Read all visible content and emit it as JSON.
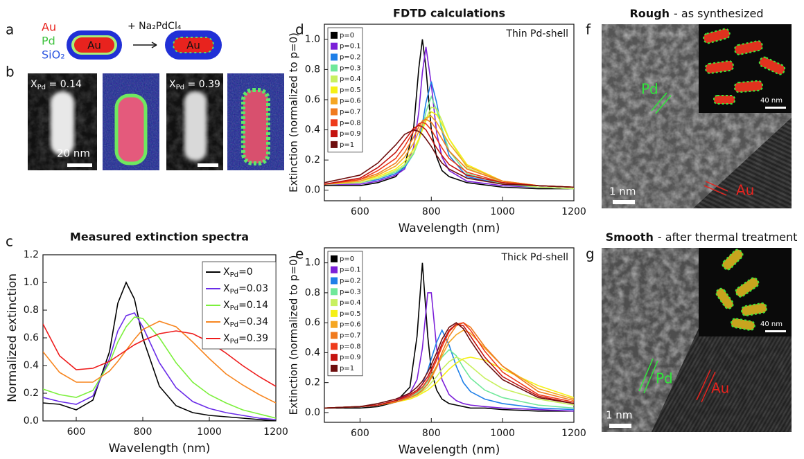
{
  "panel_labels": [
    "a",
    "b",
    "c",
    "d",
    "e",
    "f",
    "g"
  ],
  "panel_a": {
    "au": "Au",
    "pd": "Pd",
    "sio2": "SiO₂",
    "reagent": "+ Na₂PdCl₄",
    "core_left": "Au",
    "core_right": "Au"
  },
  "panel_b": {
    "label_left": "XPd = 0.14",
    "scale_left": "20 nm",
    "label_right": "XPd = 0.39"
  },
  "panel_f": {
    "title_bold": "Rough",
    "title_rest": "- as synthesized",
    "pd": "Pd",
    "au": "Au",
    "scale": "1 nm",
    "inset_scale": "40 nm"
  },
  "panel_g": {
    "title_bold": "Smooth",
    "title_rest": "- after thermal treatment",
    "pd": "Pd",
    "au": "Au",
    "scale": "1 nm",
    "inset_scale": "40 nm"
  },
  "chart_data": [
    {
      "type": "line",
      "title": "Measured extinction spectra",
      "xlabel": "Wavelength (nm)",
      "ylabel": "Normalized extinction",
      "x": [
        500,
        550,
        600,
        650,
        700,
        725,
        750,
        775,
        800,
        850,
        900,
        950,
        1000,
        1050,
        1100,
        1150,
        1200
      ],
      "series": [
        {
          "name": "XPd=0",
          "color": "#000000",
          "values": [
            0.13,
            0.12,
            0.08,
            0.15,
            0.5,
            0.85,
            1.0,
            0.88,
            0.6,
            0.25,
            0.11,
            0.06,
            0.04,
            0.03,
            0.02,
            0.01,
            0.0
          ]
        },
        {
          "name": "XPd=0.03",
          "color": "#6a2ce8",
          "values": [
            0.17,
            0.14,
            0.12,
            0.18,
            0.45,
            0.65,
            0.76,
            0.78,
            0.68,
            0.42,
            0.24,
            0.14,
            0.09,
            0.06,
            0.04,
            0.02,
            0.01
          ]
        },
        {
          "name": "XPd=0.14",
          "color": "#7cf03c",
          "values": [
            0.23,
            0.19,
            0.17,
            0.22,
            0.42,
            0.57,
            0.68,
            0.75,
            0.74,
            0.6,
            0.42,
            0.28,
            0.19,
            0.13,
            0.08,
            0.05,
            0.02
          ]
        },
        {
          "name": "XPd=0.34",
          "color": "#f7851f",
          "values": [
            0.5,
            0.35,
            0.28,
            0.28,
            0.36,
            0.43,
            0.51,
            0.59,
            0.66,
            0.72,
            0.68,
            0.57,
            0.45,
            0.34,
            0.26,
            0.19,
            0.13
          ]
        },
        {
          "name": "XPd=0.39",
          "color": "#ee1c1c",
          "values": [
            0.7,
            0.47,
            0.37,
            0.38,
            0.43,
            0.47,
            0.51,
            0.55,
            0.58,
            0.63,
            0.65,
            0.63,
            0.57,
            0.49,
            0.4,
            0.32,
            0.25
          ]
        }
      ],
      "xlim": [
        500,
        1200
      ],
      "ylim": [
        0,
        1.2
      ],
      "xticks": [
        600,
        800,
        1000,
        1200
      ],
      "yticks": [
        {
          "value": 0,
          "label": "0.0"
        },
        0.2,
        0.4,
        0.6,
        0.8,
        {
          "value": 1,
          "label": "1.0"
        },
        1.2
      ],
      "legend": "upper right"
    },
    {
      "type": "line",
      "title": "FDTD calculations",
      "annotation": "Thin Pd-shell",
      "xlabel": "Wavelength (nm)",
      "ylabel": "Extinction (normalized to p=0)",
      "x": [
        500,
        600,
        650,
        700,
        725,
        750,
        765,
        775,
        785,
        800,
        815,
        830,
        850,
        900,
        1000,
        1100,
        1200
      ],
      "series": [
        {
          "name": "p=0",
          "color": "#000000",
          "values": [
            0.03,
            0.03,
            0.05,
            0.09,
            0.16,
            0.4,
            0.81,
            1.0,
            0.81,
            0.4,
            0.22,
            0.13,
            0.09,
            0.05,
            0.02,
            0.01,
            0.01
          ]
        },
        {
          "name": "p=0.1",
          "color": "#7b1fd8",
          "values": [
            0.04,
            0.04,
            0.06,
            0.1,
            0.14,
            0.28,
            0.52,
            0.78,
            0.95,
            0.7,
            0.38,
            0.22,
            0.13,
            0.06,
            0.03,
            0.02,
            0.01
          ]
        },
        {
          "name": "p=0.2",
          "color": "#1e7fe8",
          "values": [
            0.04,
            0.05,
            0.07,
            0.11,
            0.15,
            0.24,
            0.34,
            0.44,
            0.58,
            0.72,
            0.58,
            0.39,
            0.23,
            0.09,
            0.04,
            0.02,
            0.01
          ]
        },
        {
          "name": "p=0.3",
          "color": "#6fe89a",
          "values": [
            0.04,
            0.05,
            0.08,
            0.12,
            0.16,
            0.24,
            0.33,
            0.41,
            0.52,
            0.62,
            0.53,
            0.41,
            0.26,
            0.11,
            0.04,
            0.02,
            0.01
          ]
        },
        {
          "name": "p=0.4",
          "color": "#c8f060",
          "values": [
            0.04,
            0.05,
            0.08,
            0.13,
            0.17,
            0.25,
            0.33,
            0.4,
            0.47,
            0.55,
            0.54,
            0.46,
            0.34,
            0.15,
            0.05,
            0.02,
            0.01
          ]
        },
        {
          "name": "p=0.5",
          "color": "#f5f016",
          "values": [
            0.04,
            0.06,
            0.09,
            0.14,
            0.19,
            0.27,
            0.34,
            0.4,
            0.46,
            0.52,
            0.5,
            0.44,
            0.34,
            0.17,
            0.06,
            0.03,
            0.02
          ]
        },
        {
          "name": "p=0.6",
          "color": "#f5a623",
          "values": [
            0.04,
            0.06,
            0.1,
            0.16,
            0.22,
            0.31,
            0.39,
            0.44,
            0.48,
            0.49,
            0.45,
            0.39,
            0.31,
            0.16,
            0.06,
            0.03,
            0.02
          ]
        },
        {
          "name": "p=0.7",
          "color": "#f07a1e",
          "values": [
            0.04,
            0.07,
            0.11,
            0.18,
            0.25,
            0.35,
            0.42,
            0.46,
            0.47,
            0.45,
            0.4,
            0.34,
            0.26,
            0.14,
            0.06,
            0.03,
            0.02
          ]
        },
        {
          "name": "p=0.8",
          "color": "#ee3b1c",
          "values": [
            0.04,
            0.07,
            0.13,
            0.21,
            0.29,
            0.39,
            0.44,
            0.45,
            0.44,
            0.4,
            0.34,
            0.28,
            0.21,
            0.12,
            0.05,
            0.03,
            0.02
          ]
        },
        {
          "name": "p=0.9",
          "color": "#c4130f",
          "values": [
            0.04,
            0.08,
            0.15,
            0.25,
            0.33,
            0.41,
            0.43,
            0.42,
            0.4,
            0.34,
            0.28,
            0.23,
            0.17,
            0.1,
            0.05,
            0.03,
            0.02
          ]
        },
        {
          "name": "p=1",
          "color": "#6e0e0e",
          "values": [
            0.05,
            0.1,
            0.18,
            0.3,
            0.37,
            0.4,
            0.39,
            0.37,
            0.34,
            0.29,
            0.23,
            0.18,
            0.14,
            0.08,
            0.04,
            0.03,
            0.02
          ]
        }
      ],
      "xlim": [
        500,
        1200
      ],
      "ylim": [
        -0.07,
        1.1
      ],
      "xticks": [
        600,
        800,
        1000,
        1200
      ],
      "yticks": [
        {
          "value": 0,
          "label": "0.0"
        },
        0.2,
        0.4,
        0.6,
        0.8,
        {
          "value": 1,
          "label": "1.0"
        }
      ],
      "legend": "upper left"
    },
    {
      "type": "line",
      "annotation": "Thick Pd-shell",
      "xlabel": "Wavelength (nm)",
      "ylabel": "Extinction (normalized to p=0)",
      "x": [
        500,
        600,
        650,
        700,
        740,
        760,
        775,
        790,
        800,
        815,
        830,
        850,
        870,
        890,
        910,
        950,
        1000,
        1100,
        1200
      ],
      "series": [
        {
          "name": "p=0",
          "color": "#000000",
          "values": [
            0.03,
            0.03,
            0.04,
            0.07,
            0.17,
            0.51,
            1.0,
            0.51,
            0.28,
            0.15,
            0.09,
            0.06,
            0.05,
            0.04,
            0.03,
            0.03,
            0.02,
            0.01,
            0.01
          ]
        },
        {
          "name": "p=0.1",
          "color": "#7b1fd8",
          "values": [
            0.03,
            0.04,
            0.05,
            0.08,
            0.13,
            0.22,
            0.43,
            0.8,
            0.8,
            0.43,
            0.22,
            0.12,
            0.08,
            0.06,
            0.05,
            0.04,
            0.03,
            0.02,
            0.01
          ]
        },
        {
          "name": "p=0.2",
          "color": "#1e7fe8",
          "values": [
            0.03,
            0.04,
            0.05,
            0.07,
            0.11,
            0.14,
            0.19,
            0.28,
            0.36,
            0.47,
            0.55,
            0.45,
            0.31,
            0.2,
            0.14,
            0.09,
            0.06,
            0.03,
            0.02
          ]
        },
        {
          "name": "p=0.3",
          "color": "#6fe89a",
          "values": [
            0.03,
            0.04,
            0.05,
            0.07,
            0.1,
            0.13,
            0.16,
            0.21,
            0.25,
            0.31,
            0.37,
            0.42,
            0.38,
            0.3,
            0.23,
            0.15,
            0.1,
            0.05,
            0.03
          ]
        },
        {
          "name": "p=0.4",
          "color": "#c8f060",
          "values": [
            0.03,
            0.04,
            0.05,
            0.07,
            0.1,
            0.12,
            0.14,
            0.17,
            0.2,
            0.24,
            0.29,
            0.34,
            0.37,
            0.35,
            0.31,
            0.23,
            0.16,
            0.09,
            0.05
          ]
        },
        {
          "name": "p=0.5",
          "color": "#f5f016",
          "values": [
            0.03,
            0.04,
            0.05,
            0.07,
            0.09,
            0.11,
            0.13,
            0.15,
            0.17,
            0.2,
            0.24,
            0.29,
            0.33,
            0.36,
            0.37,
            0.35,
            0.29,
            0.18,
            0.1
          ]
        },
        {
          "name": "p=0.6",
          "color": "#f5a623",
          "values": [
            0.03,
            0.04,
            0.05,
            0.07,
            0.1,
            0.12,
            0.15,
            0.19,
            0.23,
            0.3,
            0.38,
            0.47,
            0.52,
            0.55,
            0.53,
            0.43,
            0.31,
            0.16,
            0.09
          ]
        },
        {
          "name": "p=0.7",
          "color": "#f07a1e",
          "values": [
            0.03,
            0.04,
            0.05,
            0.07,
            0.1,
            0.12,
            0.15,
            0.19,
            0.24,
            0.31,
            0.4,
            0.51,
            0.58,
            0.6,
            0.57,
            0.44,
            0.31,
            0.14,
            0.08
          ]
        },
        {
          "name": "p=0.8",
          "color": "#ee3b1c",
          "values": [
            0.03,
            0.04,
            0.05,
            0.08,
            0.11,
            0.14,
            0.17,
            0.22,
            0.27,
            0.35,
            0.44,
            0.54,
            0.59,
            0.6,
            0.55,
            0.41,
            0.27,
            0.12,
            0.07
          ]
        },
        {
          "name": "p=0.9",
          "color": "#c4130f",
          "values": [
            0.03,
            0.04,
            0.05,
            0.08,
            0.12,
            0.15,
            0.19,
            0.24,
            0.29,
            0.37,
            0.46,
            0.55,
            0.59,
            0.58,
            0.51,
            0.37,
            0.24,
            0.11,
            0.06
          ]
        },
        {
          "name": "p=1",
          "color": "#6e0e0e",
          "values": [
            0.03,
            0.04,
            0.06,
            0.09,
            0.13,
            0.17,
            0.21,
            0.27,
            0.32,
            0.4,
            0.49,
            0.57,
            0.6,
            0.56,
            0.48,
            0.34,
            0.22,
            0.1,
            0.06
          ]
        }
      ],
      "xlim": [
        500,
        1200
      ],
      "ylim": [
        -0.065,
        1.1
      ],
      "xticks": [
        600,
        800,
        1000,
        1200
      ],
      "yticks": [
        {
          "value": 0,
          "label": "0.0"
        },
        0.2,
        0.4,
        0.6,
        0.8,
        {
          "value": 1,
          "label": "1.0"
        }
      ],
      "legend": "upper left"
    }
  ]
}
